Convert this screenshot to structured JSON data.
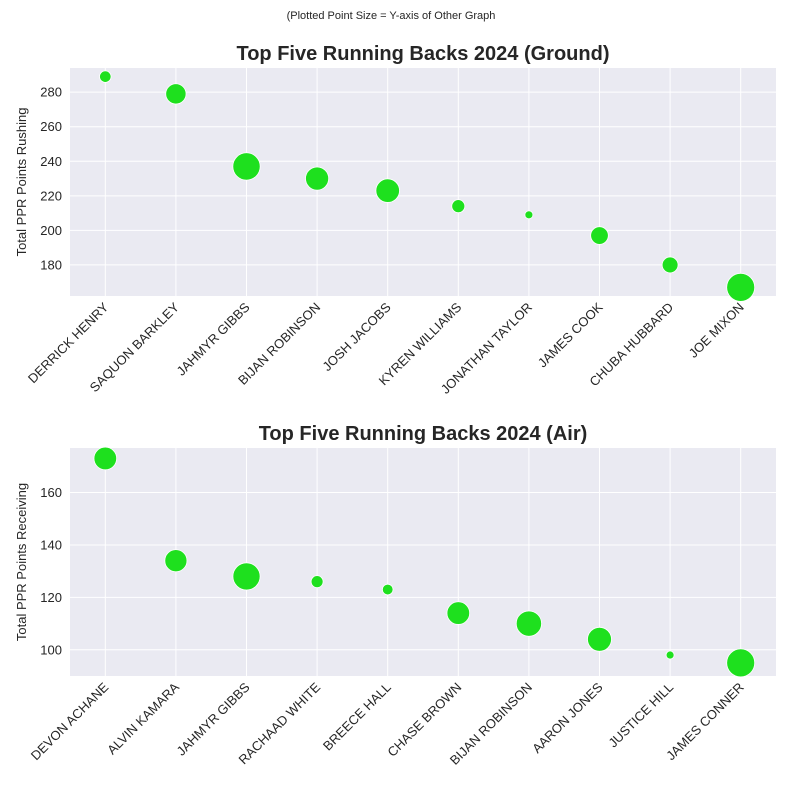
{
  "suptitle": "(Plotted Point Size = Y-axis of Other Graph",
  "chart_data": [
    {
      "type": "scatter",
      "title": "Top Five Running Backs 2024 (Ground)",
      "xlabel": "",
      "ylabel": "Total PPR Points Rushing",
      "color": "#1ee01e",
      "ylim": [
        162,
        294
      ],
      "yticks": [
        180,
        200,
        220,
        240,
        260,
        280
      ],
      "categories": [
        "DERRICK HENRY",
        "SAQUON BARKLEY",
        "JAHMYR GIBBS",
        "BIJAN ROBINSON",
        "JOSH JACOBS",
        "KYREN WILLIAMS",
        "JONATHAN TAYLOR",
        "JAMES COOK",
        "CHUBA HUBBARD",
        "JOE MIXON"
      ],
      "values": [
        289,
        279,
        237,
        230,
        223,
        214,
        209,
        197,
        180,
        167
      ],
      "point_size_values": [
        105,
        145,
        177,
        158,
        160,
        112,
        89,
        133,
        125,
        180
      ]
    },
    {
      "type": "scatter",
      "title": "Top Five Running Backs 2024 (Air)",
      "xlabel": "",
      "ylabel": "Total PPR Points Receiving",
      "color": "#1ee01e",
      "ylim": [
        90,
        177
      ],
      "yticks": [
        100,
        120,
        140,
        160
      ],
      "categories": [
        "DEVON ACHANE",
        "ALVIN KAMARA",
        "JAHMYR GIBBS",
        "RACHAAD WHITE",
        "BREECE HALL",
        "CHASE BROWN",
        "BIJAN ROBINSON",
        "AARON JONES",
        "JUSTICE HILL",
        "JAMES CONNER"
      ],
      "values": [
        173,
        134,
        128,
        126,
        123,
        114,
        110,
        104,
        98,
        95
      ],
      "point_size_values": [
        220,
        218,
        237,
        180,
        175,
        220,
        230,
        225,
        165,
        240
      ]
    }
  ]
}
